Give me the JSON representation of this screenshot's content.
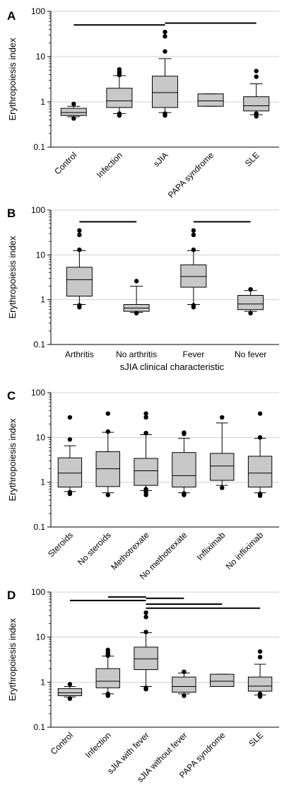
{
  "chart_data": [
    {
      "panel": "A",
      "type": "box",
      "ylabel": "Erythropoiesis index",
      "xlabel": "",
      "yscale": "log",
      "ylim": [
        0.1,
        100
      ],
      "yticks": [
        "0.1",
        "1",
        "10",
        "100"
      ],
      "grid": "horizontal",
      "categories": [
        "Control",
        "Infection",
        "sJIA",
        "PAPA syndrome",
        "SLE"
      ],
      "boxes": [
        {
          "wlo": 0.47,
          "q1": 0.5,
          "med": 0.58,
          "q3": 0.72,
          "whi": 0.8,
          "out": [
            0.43,
            0.9
          ]
        },
        {
          "wlo": 0.55,
          "q1": 0.75,
          "med": 1.05,
          "q3": 2.0,
          "whi": 3.8,
          "out": [
            0.5,
            0.55,
            3.9,
            4.2,
            4.6,
            5.2
          ]
        },
        {
          "wlo": 0.58,
          "q1": 0.75,
          "med": 1.6,
          "q3": 3.7,
          "whi": 9.0,
          "out": [
            0.5,
            0.55,
            13,
            28,
            35
          ]
        },
        {
          "wlo": 0.8,
          "q1": 0.8,
          "med": 1.05,
          "q3": 1.5,
          "whi": 1.5,
          "out": []
        },
        {
          "wlo": 0.52,
          "q1": 0.63,
          "med": 0.82,
          "q3": 1.3,
          "whi": 2.5,
          "out": [
            0.48,
            0.55,
            3.6,
            4.8
          ]
        }
      ],
      "significance": [
        {
          "from": 0,
          "to": 2,
          "y": 50
        },
        {
          "from": 2,
          "to": 4,
          "y": 55
        }
      ]
    },
    {
      "panel": "B",
      "type": "box",
      "ylabel": "Erythropoiesis index",
      "xlabel": "sJIA clinical characteristic",
      "yscale": "log",
      "ylim": [
        0.1,
        100
      ],
      "yticks": [
        "0.1",
        "1",
        "10",
        "100"
      ],
      "grid": "horizontal",
      "categories": [
        "Arthritis",
        "No arthritis",
        "Fever",
        "No fever"
      ],
      "boxes": [
        {
          "wlo": 0.78,
          "q1": 1.2,
          "med": 2.8,
          "q3": 5.3,
          "whi": 12.5,
          "out": [
            0.68,
            0.75,
            13,
            28,
            35
          ]
        },
        {
          "wlo": 0.52,
          "q1": 0.55,
          "med": 0.65,
          "q3": 0.78,
          "whi": 2.0,
          "out": [
            0.5,
            2.6
          ]
        },
        {
          "wlo": 0.78,
          "q1": 1.9,
          "med": 3.3,
          "q3": 6.0,
          "whi": 12.5,
          "out": [
            0.68,
            0.75,
            13,
            28,
            35
          ]
        },
        {
          "wlo": 0.55,
          "q1": 0.6,
          "med": 0.8,
          "q3": 1.25,
          "whi": 1.6,
          "out": [
            0.5,
            1.7
          ]
        }
      ],
      "significance": [
        {
          "from": 0,
          "to": 1,
          "y": 55
        },
        {
          "from": 2,
          "to": 3,
          "y": 55
        }
      ]
    },
    {
      "panel": "C",
      "type": "box",
      "ylabel": "Erythropoiesis index",
      "xlabel": "",
      "yscale": "log",
      "ylim": [
        0.1,
        100
      ],
      "yticks": [
        "0.1",
        "1",
        "10",
        "100"
      ],
      "grid": "horizontal",
      "categories": [
        "Steroids",
        "No steroids",
        "Methotrexate",
        "No methotrexate",
        "Infliximab",
        "No infliximab"
      ],
      "boxes": [
        {
          "wlo": 0.62,
          "q1": 0.78,
          "med": 1.6,
          "q3": 3.5,
          "whi": 6.5,
          "out": [
            0.55,
            0.6,
            9,
            28
          ]
        },
        {
          "wlo": 0.58,
          "q1": 0.8,
          "med": 2.0,
          "q3": 4.8,
          "whi": 13,
          "out": [
            0.52,
            13.5,
            34
          ]
        },
        {
          "wlo": 0.65,
          "q1": 0.85,
          "med": 1.8,
          "q3": 3.4,
          "whi": 11.5,
          "out": [
            0.52,
            0.6,
            0.7,
            12.5,
            28,
            34
          ]
        },
        {
          "wlo": 0.58,
          "q1": 0.78,
          "med": 1.4,
          "q3": 4.6,
          "whi": 9.5,
          "out": [
            0.52,
            0.56,
            12,
            12.8
          ]
        },
        {
          "wlo": 0.85,
          "q1": 1.1,
          "med": 2.3,
          "q3": 4.4,
          "whi": 21,
          "out": [
            0.75,
            28
          ]
        },
        {
          "wlo": 0.58,
          "q1": 0.78,
          "med": 1.6,
          "q3": 3.8,
          "whi": 9.5,
          "out": [
            0.5,
            0.55,
            10,
            34
          ]
        }
      ],
      "significance": []
    },
    {
      "panel": "D",
      "type": "box",
      "ylabel": "Erythropoiesis index",
      "xlabel": "",
      "yscale": "log",
      "ylim": [
        0.1,
        100
      ],
      "yticks": [
        "0.1",
        "1",
        "10",
        "100"
      ],
      "grid": "horizontal",
      "categories": [
        "Control",
        "Infection",
        "sJIA with fever",
        "sJIA without fever",
        "PAPA syndrome",
        "SLE"
      ],
      "boxes": [
        {
          "wlo": 0.47,
          "q1": 0.5,
          "med": 0.58,
          "q3": 0.72,
          "whi": 0.8,
          "out": [
            0.43,
            0.9
          ]
        },
        {
          "wlo": 0.55,
          "q1": 0.75,
          "med": 1.05,
          "q3": 2.0,
          "whi": 3.8,
          "out": [
            0.5,
            0.55,
            3.9,
            4.2,
            4.6,
            5.2
          ]
        },
        {
          "wlo": 0.8,
          "q1": 1.9,
          "med": 3.3,
          "q3": 6.0,
          "whi": 12.5,
          "out": [
            0.7,
            0.75,
            13,
            28,
            35
          ]
        },
        {
          "wlo": 0.55,
          "q1": 0.6,
          "med": 0.8,
          "q3": 1.3,
          "whi": 1.6,
          "out": [
            0.5,
            1.7
          ]
        },
        {
          "wlo": 0.8,
          "q1": 0.8,
          "med": 1.05,
          "q3": 1.5,
          "whi": 1.5,
          "out": []
        },
        {
          "wlo": 0.52,
          "q1": 0.63,
          "med": 0.82,
          "q3": 1.3,
          "whi": 2.5,
          "out": [
            0.48,
            0.55,
            3.6,
            4.8
          ]
        }
      ],
      "significance": [
        {
          "from": 0,
          "to": 2,
          "y": 65
        },
        {
          "from": 1,
          "to": 2,
          "y": 78
        },
        {
          "from": 2,
          "to": 3,
          "y": 73
        },
        {
          "from": 2,
          "to": 4,
          "y": 54
        },
        {
          "from": 2,
          "to": 5,
          "y": 44
        }
      ]
    }
  ]
}
